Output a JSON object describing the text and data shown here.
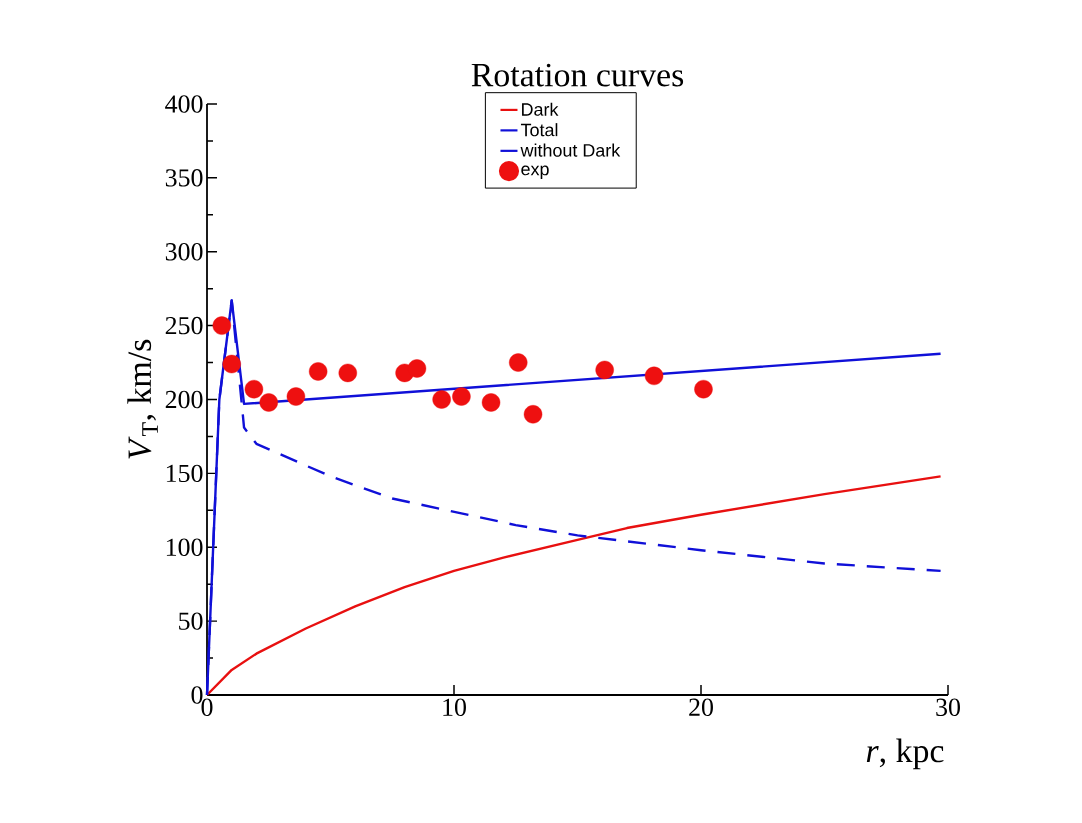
{
  "chart_data": {
    "type": "line",
    "title": "Rotation curves",
    "xlabel": "*r*, kpc",
    "ylabel": "*V*$_{T}$, km/s",
    "xlim": [
      0,
      30
    ],
    "ylim": [
      0,
      400
    ],
    "xticks": [
      0,
      10,
      20,
      30
    ],
    "yticks": [
      0,
      50,
      100,
      150,
      200,
      250,
      300,
      350,
      400
    ],
    "grid": false,
    "legend": "top",
    "series": [
      {
        "name": "Dark",
        "color": "#e81010",
        "line_style": "solid",
        "marker": "none",
        "x": [
          0,
          1,
          2,
          4,
          6,
          8,
          10,
          12,
          15,
          17,
          20,
          25,
          29.7
        ],
        "values": [
          0,
          17,
          28,
          45,
          60,
          73,
          84,
          93,
          105,
          113,
          122,
          136,
          148
        ]
      },
      {
        "name": "Total",
        "color": "#1010d8",
        "line_style": "solid",
        "marker": "none",
        "x": [
          0,
          0.5,
          1.0,
          1.5,
          29.7
        ],
        "values": [
          0,
          200,
          267,
          197,
          231
        ]
      },
      {
        "name": "without Dark",
        "color": "#1010d8",
        "line_style": "dashed",
        "marker": "none",
        "x": [
          0,
          0.5,
          1.0,
          1.5,
          2,
          5,
          7.5,
          10,
          12.5,
          15,
          20,
          25,
          29.7
        ],
        "values": [
          0,
          200,
          267,
          181,
          170,
          148,
          133,
          124,
          115,
          108,
          98,
          89,
          84
        ]
      },
      {
        "name": "exp",
        "type": "scatter",
        "color": "#ee1010",
        "marker": "circle",
        "x": [
          0.6,
          1.0,
          1.9,
          2.5,
          3.6,
          4.5,
          5.7,
          8.0,
          8.5,
          9.5,
          10.3,
          11.5,
          12.6,
          13.2,
          16.1,
          18.1,
          20.1
        ],
        "values": [
          250,
          224,
          207,
          198,
          202,
          219,
          218,
          218,
          221,
          200,
          202,
          198,
          225,
          190,
          220,
          216,
          207
        ]
      }
    ]
  }
}
